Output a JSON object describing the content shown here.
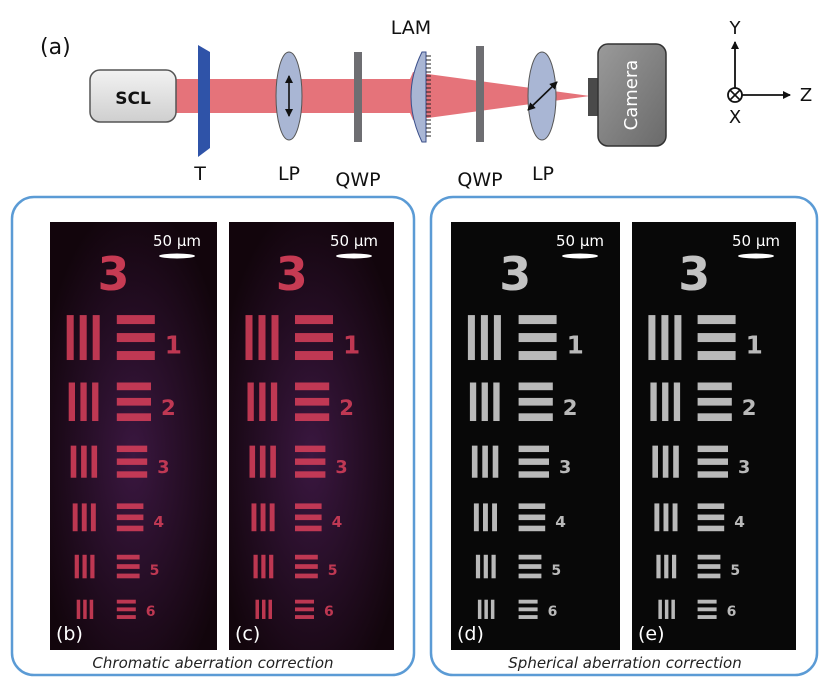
{
  "optics": {
    "panel_label": "(a)",
    "source_label": "SCL",
    "target_label": "T",
    "lp1_label": "LP",
    "qwp1_label": "QWP",
    "lam_label": "LAM",
    "qwp2_label": "QWP",
    "lp2_label": "LP",
    "camera_label": "Camera"
  },
  "axes": {
    "y": "Y",
    "z": "Z",
    "x": "X"
  },
  "colors": {
    "beam": "#e05a63",
    "target": "#2f53a8",
    "lens": "#a9b6d4",
    "plate": "#6e6e72",
    "source_box": "#e3e3e3",
    "camera": "#8a8a8a",
    "group_border": "#5b9bd5",
    "chromatic_bar": "#d9405a",
    "chromatic_bg": "#1a0710",
    "spherical_bar": "#d8d8d8",
    "spherical_bg": "#080808"
  },
  "panels": [
    {
      "id": "(b)",
      "scale": "50 μm"
    },
    {
      "id": "(c)",
      "scale": "50 μm"
    },
    {
      "id": "(d)",
      "scale": "50 μm"
    },
    {
      "id": "(e)",
      "scale": "50 μm"
    }
  ],
  "groups": [
    {
      "caption": "Chromatic aberration correction"
    },
    {
      "caption": "Spherical aberration correction"
    }
  ],
  "target_pattern": {
    "group_number": "3",
    "element_numbers": [
      "1",
      "2",
      "3",
      "4",
      "5",
      "6"
    ]
  }
}
